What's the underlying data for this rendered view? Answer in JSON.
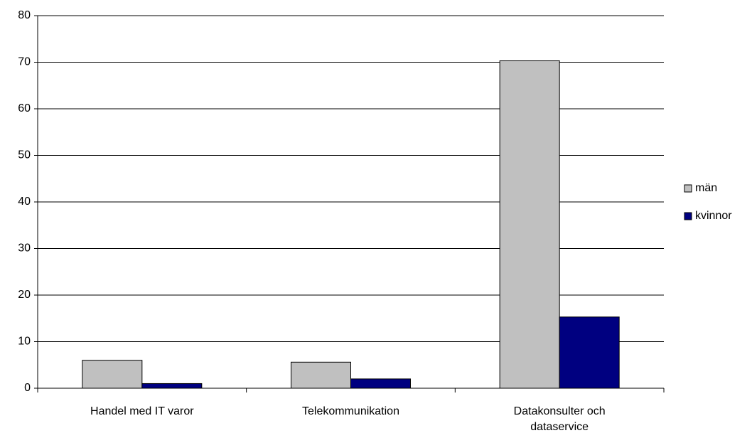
{
  "chart_data": {
    "type": "bar",
    "categories": [
      "Handel med IT varor",
      "Telekommunikation",
      "Datakonsulter och dataservice"
    ],
    "series": [
      {
        "name": "män",
        "color": "#c0c0c0",
        "values": [
          6,
          5.6,
          70.3
        ]
      },
      {
        "name": "kvinnor",
        "color": "#000080",
        "values": [
          1,
          2,
          15.3
        ]
      }
    ],
    "ylim": [
      0,
      80
    ],
    "yticks": [
      0,
      10,
      20,
      30,
      40,
      50,
      60,
      70,
      80
    ],
    "grid": true,
    "legend": "right"
  }
}
